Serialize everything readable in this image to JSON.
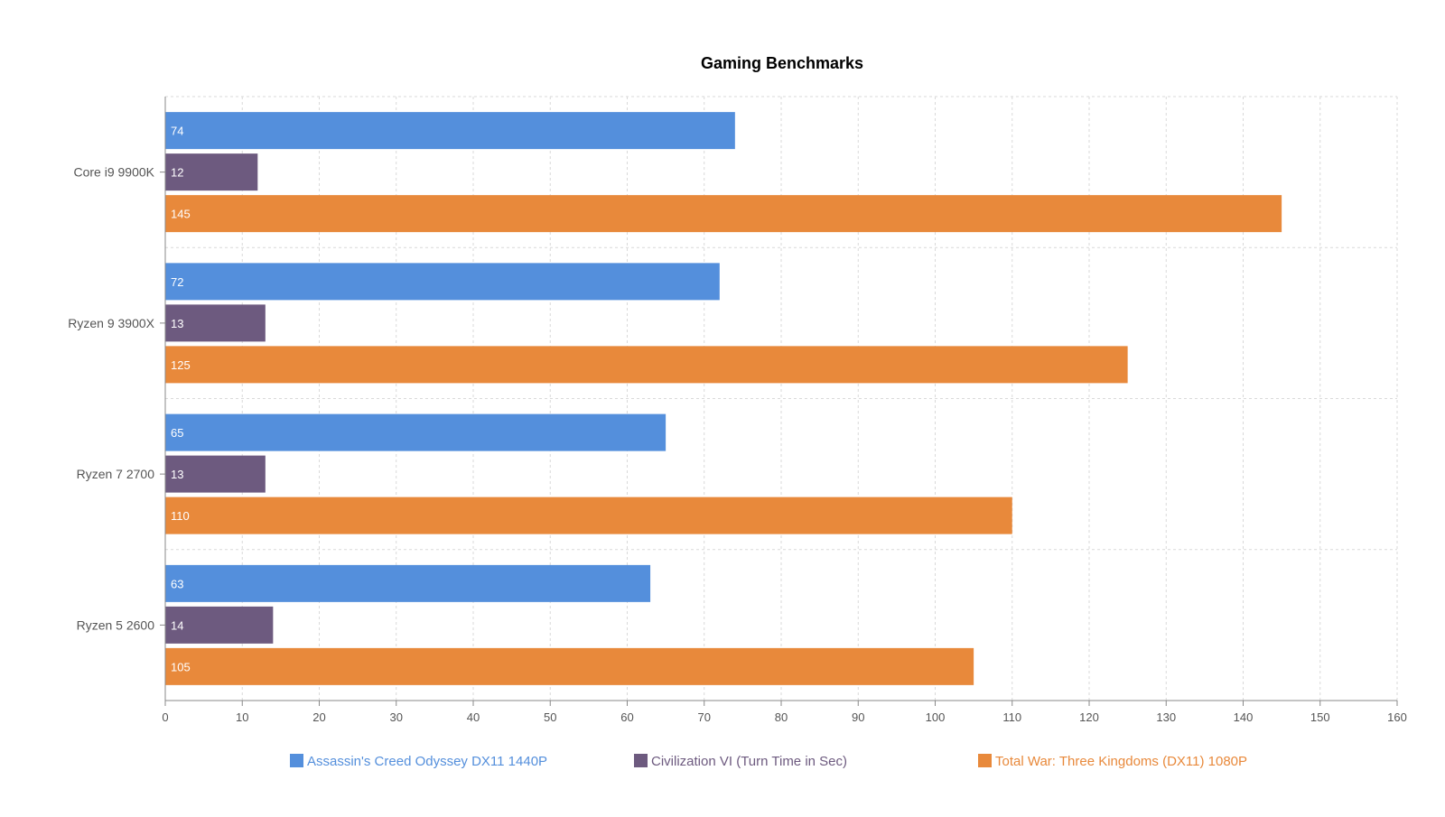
{
  "chart_data": {
    "type": "bar",
    "orientation": "horizontal",
    "title": "Gaming Benchmarks",
    "xlabel": "",
    "ylabel": "",
    "categories": [
      "Core i9 9900K",
      "Ryzen 9 3900X",
      "Ryzen 7 2700",
      "Ryzen 5 2600"
    ],
    "series": [
      {
        "name": "Assassin's Creed Odyssey DX11 1440P",
        "color": "#548fdc",
        "values": [
          74,
          72,
          65,
          63
        ]
      },
      {
        "name": "Civilization VI (Turn Time in Sec)",
        "color": "#6d5a7f",
        "values": [
          12,
          13,
          13,
          14
        ]
      },
      {
        "name": "Total War: Three Kingdoms (DX11) 1080P",
        "color": "#e8893b",
        "values": [
          145,
          125,
          110,
          105
        ]
      }
    ],
    "xlim": [
      0,
      160
    ],
    "xticks": [
      0,
      10,
      20,
      30,
      40,
      50,
      60,
      70,
      80,
      90,
      100,
      110,
      120,
      130,
      140,
      150,
      160
    ],
    "grid": true,
    "data_labels": true,
    "legend_position": "bottom"
  }
}
